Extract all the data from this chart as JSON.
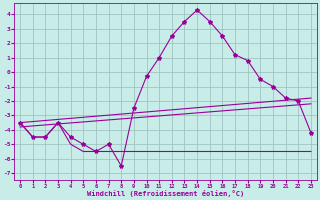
{
  "xlabel": "Windchill (Refroidissement éolien,°C)",
  "background_color": "#c8ece8",
  "grid_color": "#99bbbb",
  "line_color": "#990099",
  "xlim": [
    -0.5,
    23.5
  ],
  "ylim": [
    -7.5,
    4.8
  ],
  "xticks": [
    0,
    1,
    2,
    3,
    4,
    5,
    6,
    7,
    8,
    9,
    10,
    11,
    12,
    13,
    14,
    15,
    16,
    17,
    18,
    19,
    20,
    21,
    22,
    23
  ],
  "yticks": [
    -7,
    -6,
    -5,
    -4,
    -3,
    -2,
    -1,
    0,
    1,
    2,
    3,
    4
  ],
  "series_main": {
    "x": [
      0,
      1,
      2,
      3,
      4,
      5,
      6,
      7,
      8,
      9,
      10,
      11,
      12,
      13,
      14,
      15,
      16,
      17,
      18,
      19,
      20,
      21,
      22,
      23
    ],
    "y": [
      -3.5,
      -4.5,
      -4.5,
      -3.5,
      -4.5,
      -5.0,
      -5.5,
      -5.0,
      -6.5,
      -2.5,
      -0.3,
      1.0,
      2.5,
      3.5,
      4.3,
      3.5,
      2.5,
      1.2,
      0.8,
      -0.5,
      -1.0,
      -1.8,
      -2.0,
      -4.2
    ]
  },
  "series_flat": {
    "x": [
      0,
      1,
      2,
      3,
      4,
      5,
      6,
      7,
      8,
      9,
      10,
      11,
      12,
      13,
      14,
      15,
      16,
      17,
      18,
      19,
      20,
      21,
      22,
      23
    ],
    "y": [
      -3.5,
      -4.5,
      -4.5,
      -3.5,
      -5.0,
      -5.5,
      -5.5,
      -5.5,
      -5.5,
      -5.5,
      -5.5,
      -5.5,
      -5.5,
      -5.5,
      -5.5,
      -5.5,
      -5.5,
      -5.5,
      -5.5,
      -5.5,
      -5.5,
      -5.5,
      -5.5,
      -5.5
    ]
  },
  "series_trend1": {
    "x": [
      0,
      23
    ],
    "y": [
      -3.8,
      -2.2
    ]
  },
  "series_trend2": {
    "x": [
      0,
      23
    ],
    "y": [
      -3.5,
      -1.8
    ]
  }
}
